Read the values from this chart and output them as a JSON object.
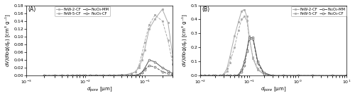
{
  "panel_A": {
    "xlim": [
      0.001,
      0.3
    ],
    "ylim": [
      0,
      0.18
    ],
    "yticks": [
      0,
      0.02,
      0.04,
      0.06,
      0.08,
      0.1,
      0.12,
      0.14,
      0.16,
      0.18
    ],
    "series": {
      "FeW-2-CF": {
        "x": [
          0.002,
          0.003,
          0.004,
          0.005,
          0.006,
          0.007,
          0.008,
          0.009,
          0.01,
          0.012,
          0.015,
          0.02,
          0.025,
          0.03,
          0.04,
          0.05,
          0.06,
          0.07,
          0.08,
          0.09,
          0.1,
          0.12,
          0.15,
          0.2,
          0.25,
          0.3
        ],
        "y": [
          0.0,
          0.0,
          0.0,
          0.0,
          0.0,
          0.0,
          0.0,
          0.0,
          0.0,
          0.0,
          0.001,
          0.001,
          0.001,
          0.001,
          0.002,
          0.003,
          0.005,
          0.01,
          0.02,
          0.04,
          0.065,
          0.12,
          0.145,
          0.17,
          0.135,
          0.05
        ],
        "color": "#aaaaaa",
        "marker": "s",
        "linestyle": "-",
        "mfc": "#aaaaaa"
      },
      "FeW-5-CF": {
        "x": [
          0.002,
          0.003,
          0.004,
          0.005,
          0.006,
          0.007,
          0.008,
          0.009,
          0.01,
          0.012,
          0.015,
          0.02,
          0.025,
          0.03,
          0.04,
          0.05,
          0.06,
          0.07,
          0.08,
          0.09,
          0.1,
          0.12,
          0.15,
          0.2,
          0.25,
          0.3
        ],
        "y": [
          0.0,
          0.0,
          0.0,
          0.0,
          0.0,
          0.0,
          0.0,
          0.0,
          0.0,
          0.0,
          0.001,
          0.001,
          0.001,
          0.001,
          0.002,
          0.003,
          0.005,
          0.01,
          0.025,
          0.055,
          0.085,
          0.13,
          0.155,
          0.14,
          0.09,
          0.03
        ],
        "color": "#aaaaaa",
        "marker": "s",
        "linestyle": "--",
        "mfc": "#aaaaaa"
      },
      "Fe2O3-MM": {
        "x": [
          0.002,
          0.003,
          0.004,
          0.005,
          0.006,
          0.007,
          0.008,
          0.009,
          0.01,
          0.012,
          0.015,
          0.02,
          0.025,
          0.03,
          0.04,
          0.05,
          0.06,
          0.07,
          0.08,
          0.09,
          0.1,
          0.12,
          0.15,
          0.2,
          0.25,
          0.3
        ],
        "y": [
          0.0,
          0.0,
          0.0,
          0.0,
          0.0,
          0.0,
          0.0,
          0.0,
          0.0,
          0.0,
          0.0,
          0.0,
          0.0,
          0.0,
          0.0,
          0.0,
          0.0,
          0.001,
          0.003,
          0.008,
          0.018,
          0.04,
          0.035,
          0.02,
          0.012,
          0.005
        ],
        "color": "#555555",
        "marker": "o",
        "linestyle": "-",
        "mfc": "white"
      },
      "Fe2O3-CF": {
        "x": [
          0.002,
          0.003,
          0.004,
          0.005,
          0.006,
          0.007,
          0.008,
          0.009,
          0.01,
          0.012,
          0.015,
          0.02,
          0.025,
          0.03,
          0.04,
          0.05,
          0.06,
          0.07,
          0.08,
          0.09,
          0.1,
          0.12,
          0.15,
          0.2,
          0.25,
          0.3
        ],
        "y": [
          0.0,
          0.0,
          0.0,
          0.0,
          0.0,
          0.0,
          0.0,
          0.0,
          0.0,
          0.0,
          0.0,
          0.0,
          0.0,
          0.0,
          0.0,
          0.0,
          0.0,
          0.001,
          0.003,
          0.008,
          0.015,
          0.025,
          0.022,
          0.01,
          0.005,
          0.002
        ],
        "color": "#555555",
        "marker": "o",
        "linestyle": "--",
        "mfc": "white"
      }
    }
  },
  "panel_B": {
    "xlim": [
      0.01,
      10
    ],
    "ylim": [
      0,
      0.5
    ],
    "yticks": [
      0,
      0.1,
      0.2,
      0.3,
      0.4,
      0.5
    ],
    "series": {
      "FeW-2-CF": {
        "x": [
          0.01,
          0.012,
          0.015,
          0.018,
          0.02,
          0.025,
          0.03,
          0.035,
          0.04,
          0.05,
          0.06,
          0.07,
          0.08,
          0.09,
          0.1,
          0.12,
          0.15,
          0.2,
          0.3,
          0.5,
          1.0,
          2.0,
          5.0,
          10.0
        ],
        "y": [
          0.0,
          0.0,
          0.0,
          0.0,
          0.0,
          0.0,
          0.01,
          0.05,
          0.13,
          0.28,
          0.38,
          0.46,
          0.47,
          0.42,
          0.28,
          0.12,
          0.04,
          0.01,
          0.0,
          0.0,
          0.0,
          0.0,
          0.0,
          0.0
        ],
        "color": "#aaaaaa",
        "marker": "s",
        "linestyle": "-",
        "mfc": "#aaaaaa"
      },
      "FeW-5-CF": {
        "x": [
          0.01,
          0.012,
          0.015,
          0.018,
          0.02,
          0.025,
          0.03,
          0.035,
          0.04,
          0.05,
          0.06,
          0.07,
          0.08,
          0.09,
          0.1,
          0.12,
          0.15,
          0.2,
          0.3,
          0.5,
          1.0,
          2.0,
          5.0,
          10.0
        ],
        "y": [
          0.0,
          0.0,
          0.0,
          0.0,
          0.0,
          0.0,
          0.005,
          0.03,
          0.09,
          0.2,
          0.32,
          0.4,
          0.42,
          0.39,
          0.27,
          0.13,
          0.05,
          0.01,
          0.0,
          0.0,
          0.0,
          0.0,
          0.0,
          0.0
        ],
        "color": "#aaaaaa",
        "marker": "s",
        "linestyle": "--",
        "mfc": "#aaaaaa"
      },
      "Fe2O3-MM": {
        "x": [
          0.01,
          0.012,
          0.015,
          0.018,
          0.02,
          0.025,
          0.03,
          0.035,
          0.04,
          0.05,
          0.06,
          0.07,
          0.08,
          0.09,
          0.1,
          0.12,
          0.15,
          0.2,
          0.3,
          0.5,
          1.0,
          2.0,
          5.0,
          10.0
        ],
        "y": [
          0.0,
          0.0,
          0.0,
          0.0,
          0.0,
          0.0,
          0.0,
          0.0,
          0.0,
          0.0,
          0.005,
          0.04,
          0.1,
          0.18,
          0.27,
          0.27,
          0.1,
          0.02,
          0.0,
          0.0,
          0.0,
          0.0,
          0.0,
          0.0
        ],
        "color": "#555555",
        "marker": "o",
        "linestyle": "-",
        "mfc": "white"
      },
      "Fe2O3-CF": {
        "x": [
          0.01,
          0.012,
          0.015,
          0.018,
          0.02,
          0.025,
          0.03,
          0.035,
          0.04,
          0.05,
          0.06,
          0.07,
          0.08,
          0.09,
          0.1,
          0.12,
          0.15,
          0.2,
          0.3,
          0.5,
          1.0,
          2.0,
          5.0,
          10.0
        ],
        "y": [
          0.0,
          0.0,
          0.0,
          0.0,
          0.0,
          0.0,
          0.0,
          0.0,
          0.0,
          0.0,
          0.003,
          0.025,
          0.07,
          0.17,
          0.26,
          0.26,
          0.09,
          0.01,
          0.0,
          0.0,
          0.0,
          0.0,
          0.0,
          0.0
        ],
        "color": "#555555",
        "marker": "o",
        "linestyle": "--",
        "mfc": "white"
      }
    }
  },
  "font_size": 5.0,
  "marker_size": 2.0,
  "line_width": 0.7
}
